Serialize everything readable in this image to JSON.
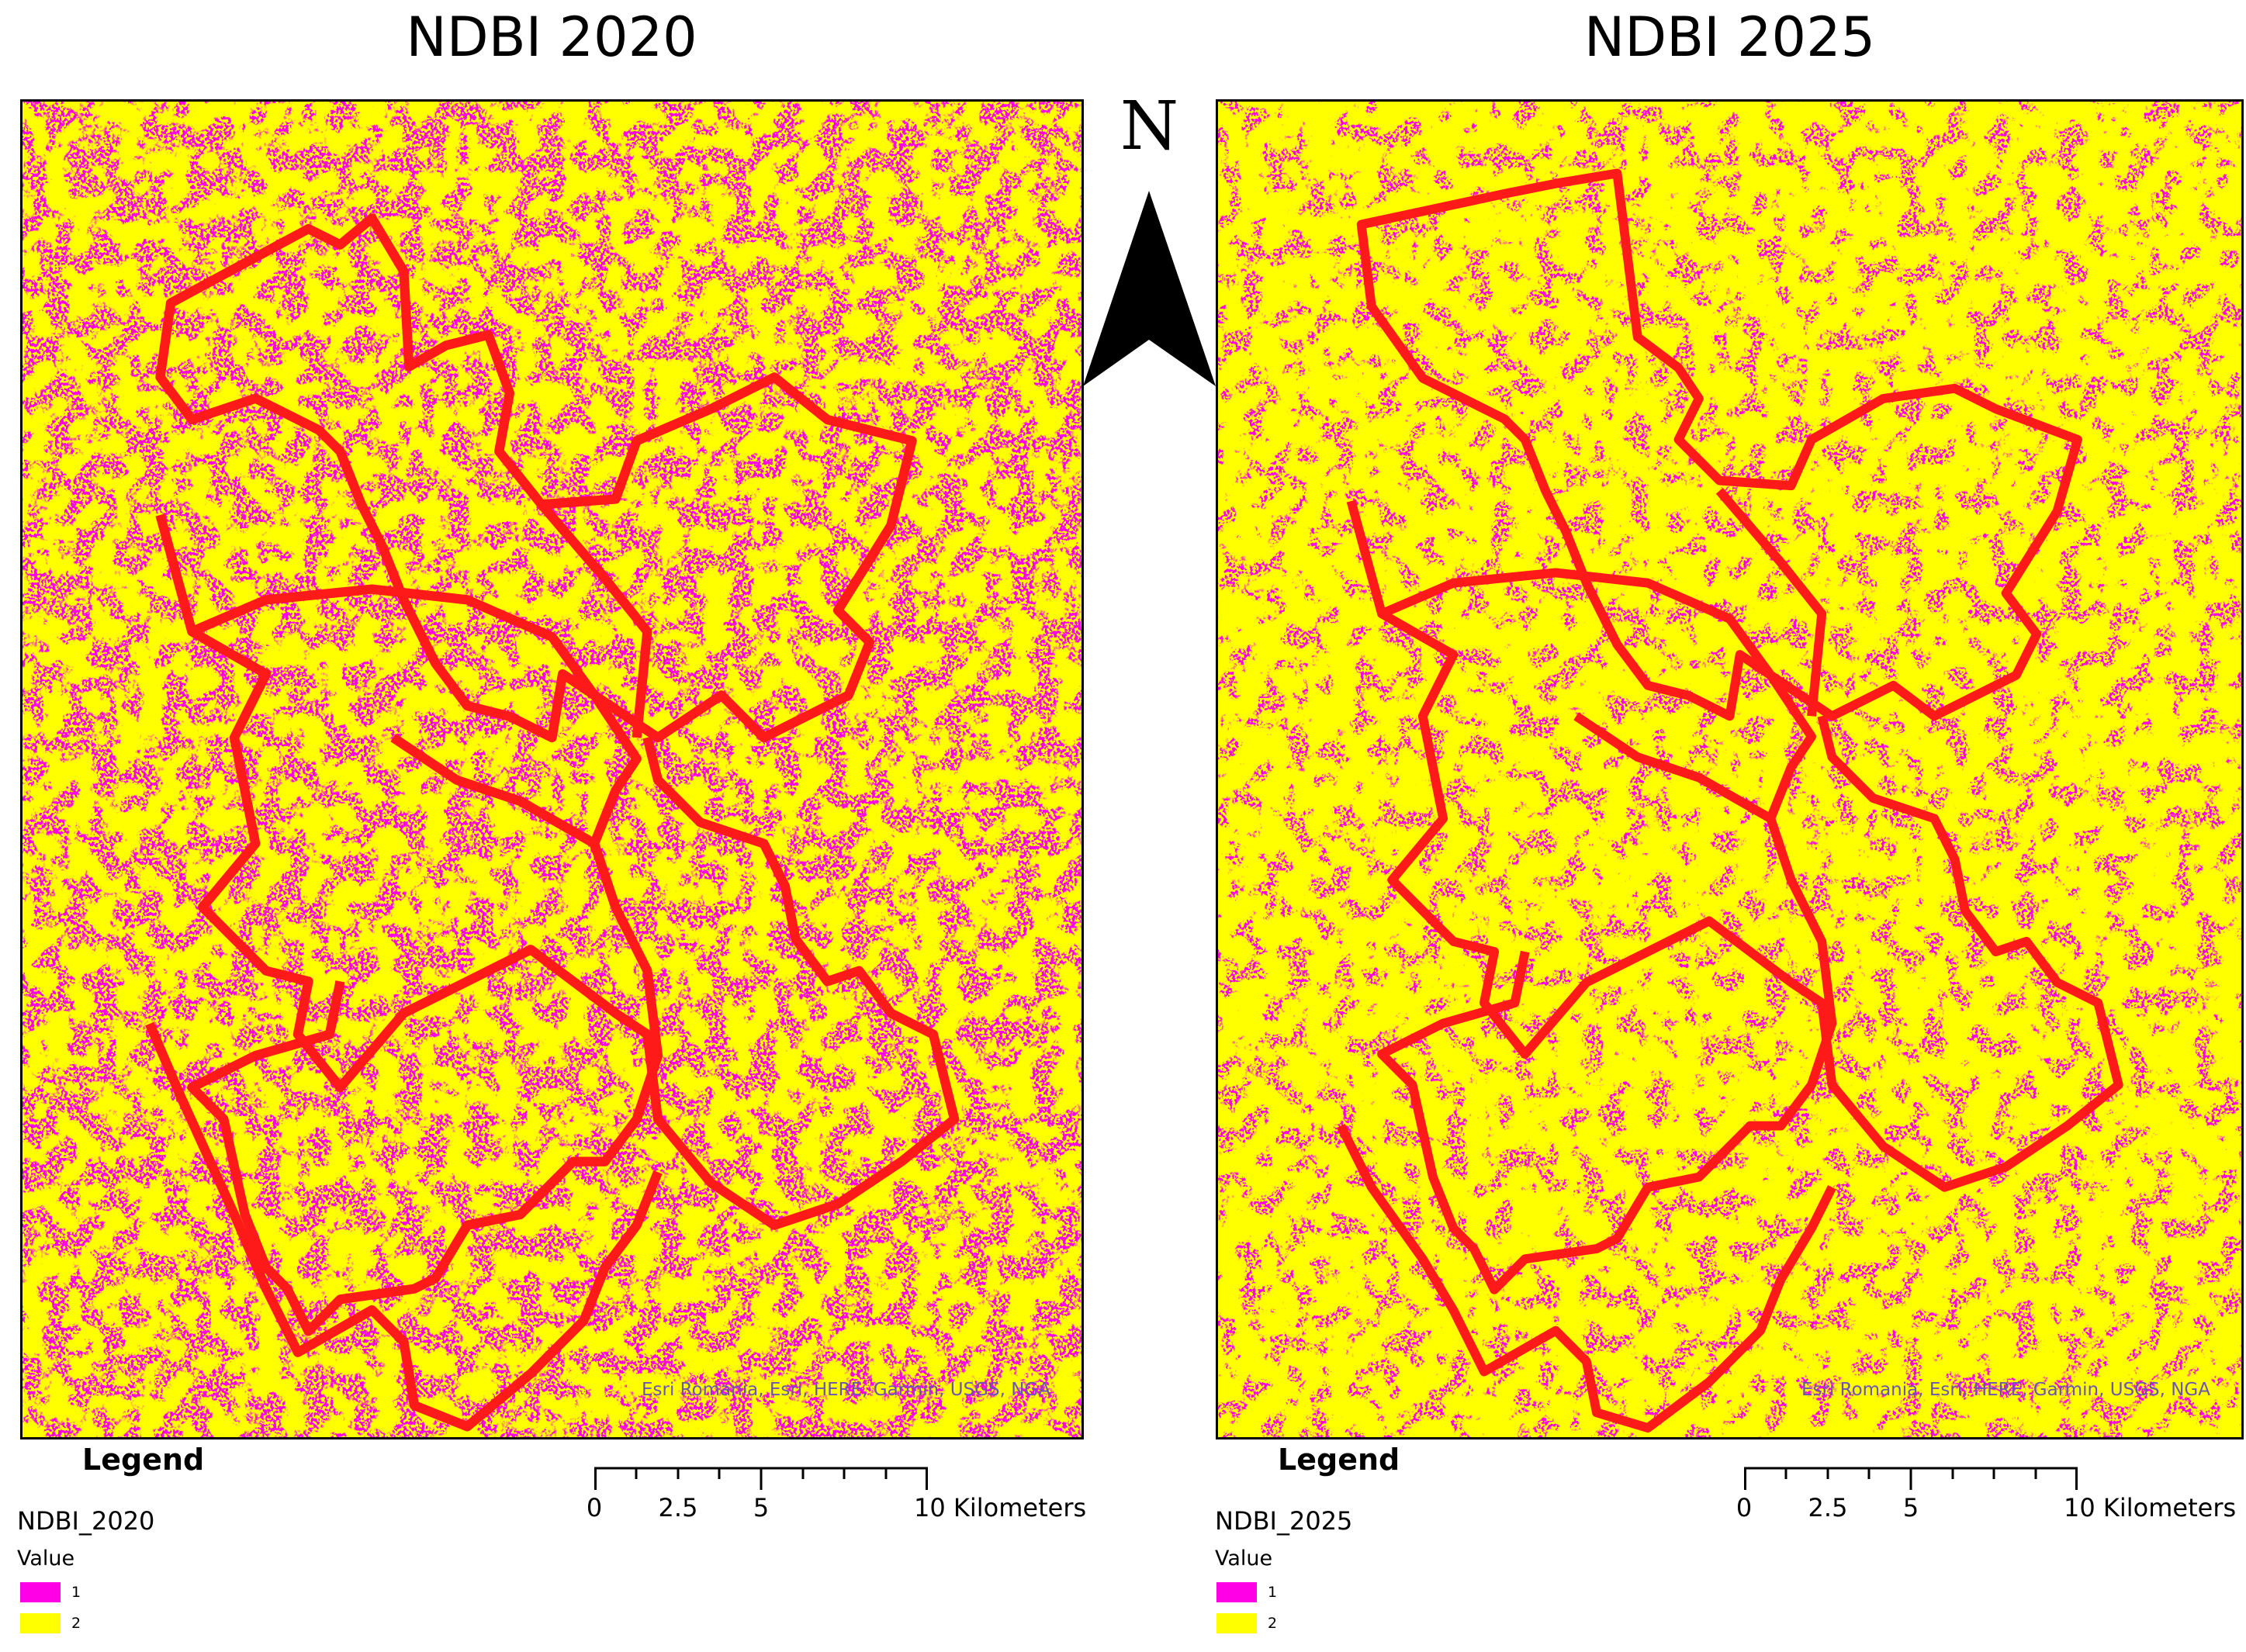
{
  "colors": {
    "value_1": "#ff00e6",
    "value_2": "#ffff00",
    "boundary": "#ff1a1a",
    "attribution": "#6a55b4"
  },
  "maps": {
    "left": {
      "title": "NDBI 2020",
      "attribution": "Esri Romania, Esri, HERE, Garmin, USGS, NGA",
      "legend": {
        "title": "Legend",
        "layer": "NDBI_2020",
        "field": "Value",
        "items": [
          {
            "label": "1",
            "color": "#ff00e6"
          },
          {
            "label": "2",
            "color": "#ffff00"
          }
        ]
      },
      "scalebar": {
        "labels": [
          "0",
          "2.5",
          "5",
          "10 Kilometers"
        ]
      }
    },
    "right": {
      "title": "NDBI 2025",
      "attribution": "Esri Romania, Esri, HERE, Garmin, USGS, NGA",
      "legend": {
        "title": "Legend",
        "layer": "NDBI_2025",
        "field": "Value",
        "items": [
          {
            "label": "1",
            "color": "#ff00e6"
          },
          {
            "label": "2",
            "color": "#ffff00"
          }
        ]
      },
      "scalebar": {
        "labels": [
          "0",
          "2.5",
          "5",
          "10 Kilometers"
        ]
      }
    }
  },
  "north_arrow": {
    "letter": "N",
    "icon": "north-arrow-icon"
  }
}
